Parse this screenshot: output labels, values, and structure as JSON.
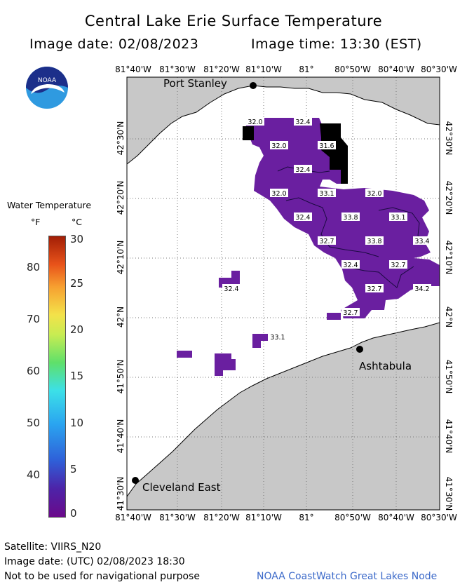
{
  "header": {
    "title": "Central Lake Erie Surface Temperature",
    "image_date": "Image date: 02/08/2023",
    "image_time": "Image time: 13:30 (EST)"
  },
  "logo": {
    "text": "NOAA",
    "icon": "noaa-logo-icon"
  },
  "map": {
    "lon_labels": [
      "81°40'W",
      "81°30'W",
      "81°20'W",
      "81°10'W",
      "81°",
      "80°50'W",
      "80°40'W",
      "80°30'W"
    ],
    "lat_labels": [
      "42°30'N",
      "42°20'N",
      "42°10'N",
      "42°N",
      "41°50'N",
      "41°40'N",
      "41°30'N"
    ],
    "cities": [
      {
        "name": "Port Stanley"
      },
      {
        "name": "Ashtabula"
      },
      {
        "name": "Cleveland East"
      }
    ],
    "temperature_labels": [
      "32.0",
      "32.4",
      "32.0",
      "31.6",
      "32.4",
      "32.0",
      "33.1",
      "32.0",
      "32.4",
      "33.8",
      "33.1",
      "32.7",
      "33.8",
      "33.4",
      "32.4",
      "32.7",
      "32.4",
      "32.7",
      "34.2",
      "32.7",
      "33.1"
    ],
    "colors": {
      "land": "#c8c8c8",
      "water": "#ffffff",
      "sst": "#6a1fa0",
      "cloud": "#000000"
    }
  },
  "legend": {
    "title": "Water Temperature",
    "unit_f": "°F",
    "unit_c": "°C",
    "fahrenheit_ticks": [
      "80",
      "70",
      "60",
      "50",
      "40"
    ],
    "celsius_ticks": [
      "30",
      "25",
      "20",
      "15",
      "10",
      "5",
      "0"
    ]
  },
  "footer": {
    "satellite": "Satellite: VIIRS_N20",
    "utc_date": "Image date: (UTC) 02/08/2023  18:30",
    "disclaimer": "Not to be used for navigational purpose",
    "credit": "NOAA CoastWatch Great Lakes Node"
  }
}
